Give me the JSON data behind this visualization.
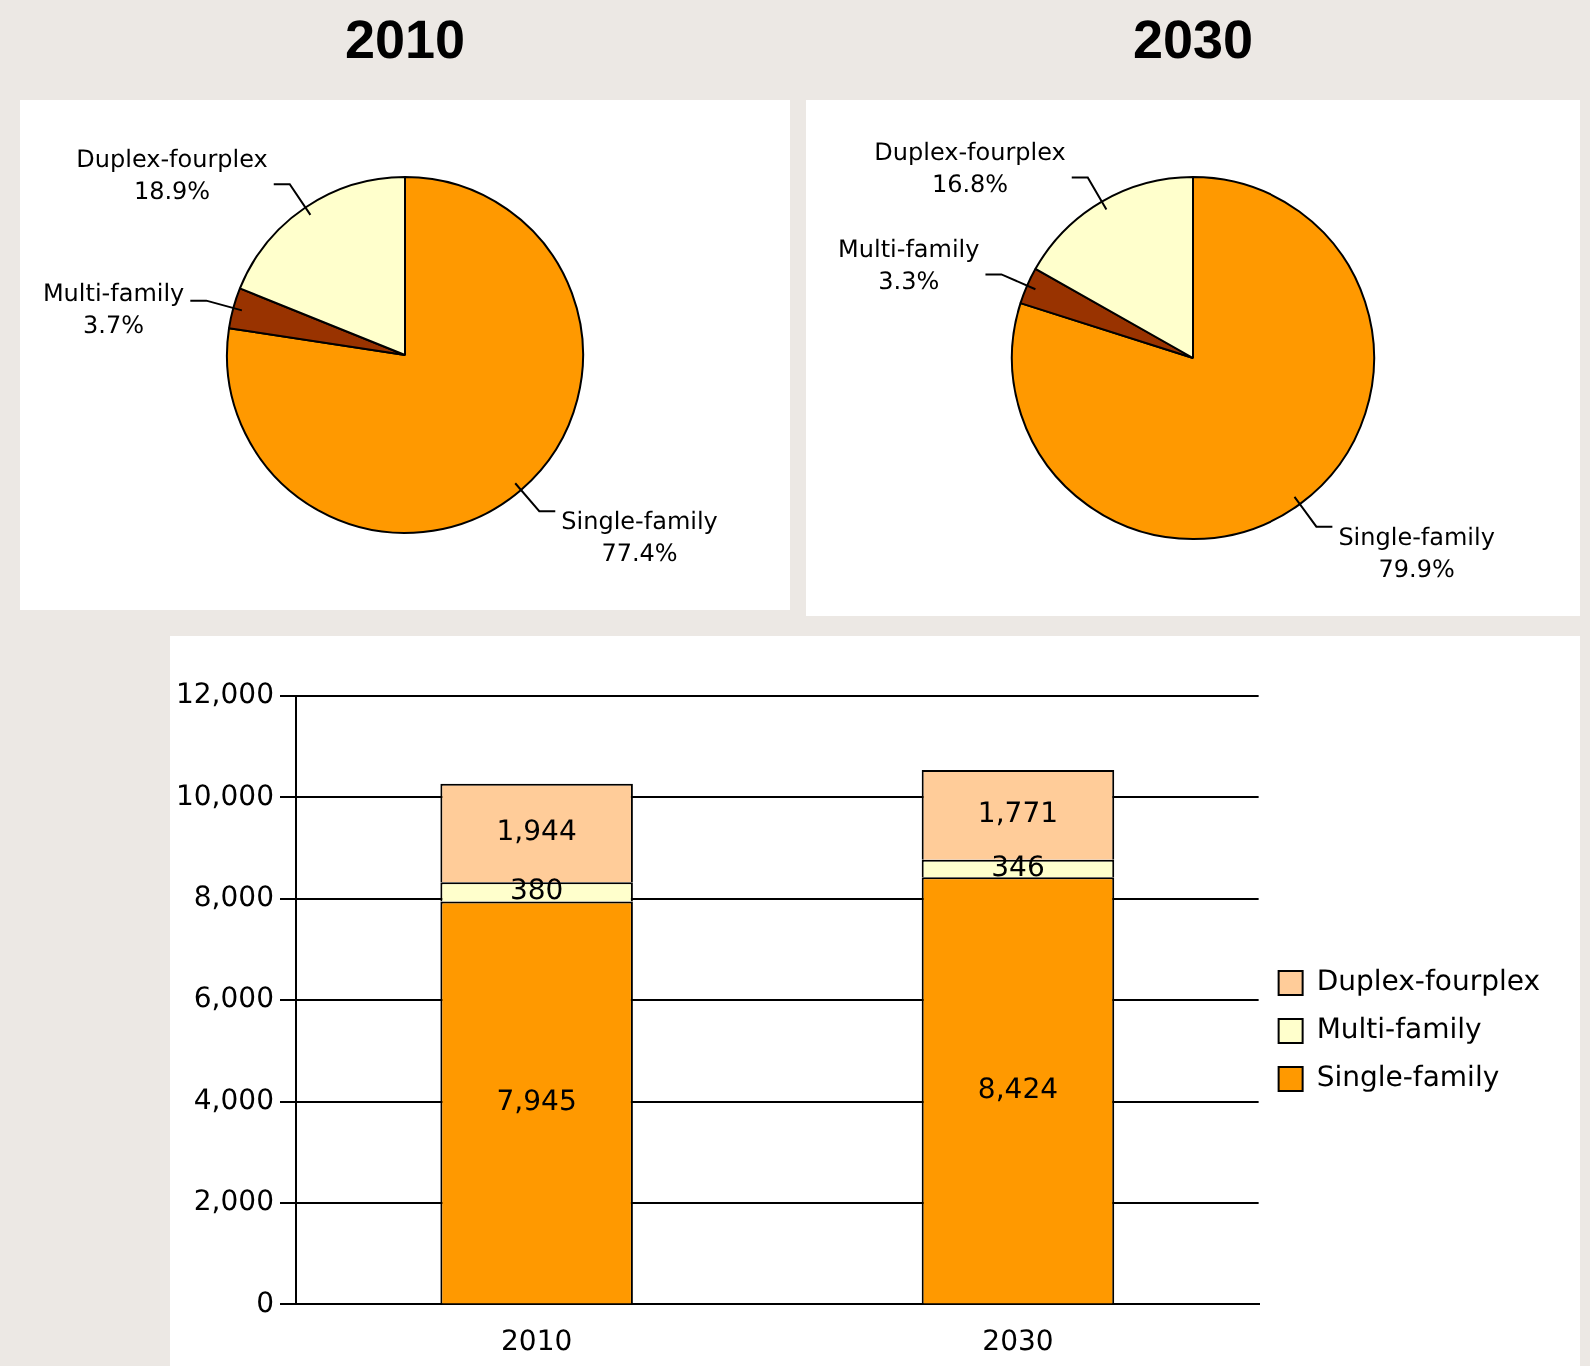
{
  "chart_data": [
    {
      "type": "pie",
      "title": "2010",
      "categories": [
        "Single-family",
        "Multi-family",
        "Duplex-fourplex"
      ],
      "values": [
        77.4,
        3.7,
        18.9
      ],
      "colors": [
        "#ff9900",
        "#993300",
        "#ffffcc"
      ],
      "value_labels": [
        "77.4%",
        "3.7%",
        "18.9%"
      ]
    },
    {
      "type": "pie",
      "title": "2030",
      "categories": [
        "Single-family",
        "Multi-family",
        "Duplex-fourplex"
      ],
      "values": [
        79.9,
        3.3,
        16.8
      ],
      "colors": [
        "#ff9900",
        "#993300",
        "#ffffcc"
      ],
      "value_labels": [
        "79.9%",
        "3.3%",
        "16.8%"
      ]
    },
    {
      "type": "bar",
      "categories": [
        "2010",
        "2030"
      ],
      "stacked": true,
      "ylim": [
        0,
        12000
      ],
      "yticks": [
        0,
        {
          "value": 2000,
          "label": "2,000"
        },
        {
          "value": 4000,
          "label": "4,000"
        },
        {
          "value": 6000,
          "label": "6,000"
        },
        {
          "value": 8000,
          "label": "8,000"
        },
        {
          "value": 10000,
          "label": "10,000"
        },
        {
          "value": 12000,
          "label": "12,000"
        }
      ],
      "grid": "y",
      "legend": "right",
      "series": [
        {
          "name": "Single-family",
          "color": "#ff9900",
          "values": [
            7945,
            8424
          ],
          "value_labels": [
            "7,945",
            "8,424"
          ]
        },
        {
          "name": "Multi-family",
          "color": "#ffffcc",
          "values": [
            380,
            346
          ],
          "value_labels": [
            "380",
            "346"
          ]
        },
        {
          "name": "Duplex-fourplex",
          "color": "#ffcc99",
          "values": [
            1944,
            1771
          ],
          "value_labels": [
            "1,944",
            "1,771"
          ]
        }
      ]
    }
  ]
}
